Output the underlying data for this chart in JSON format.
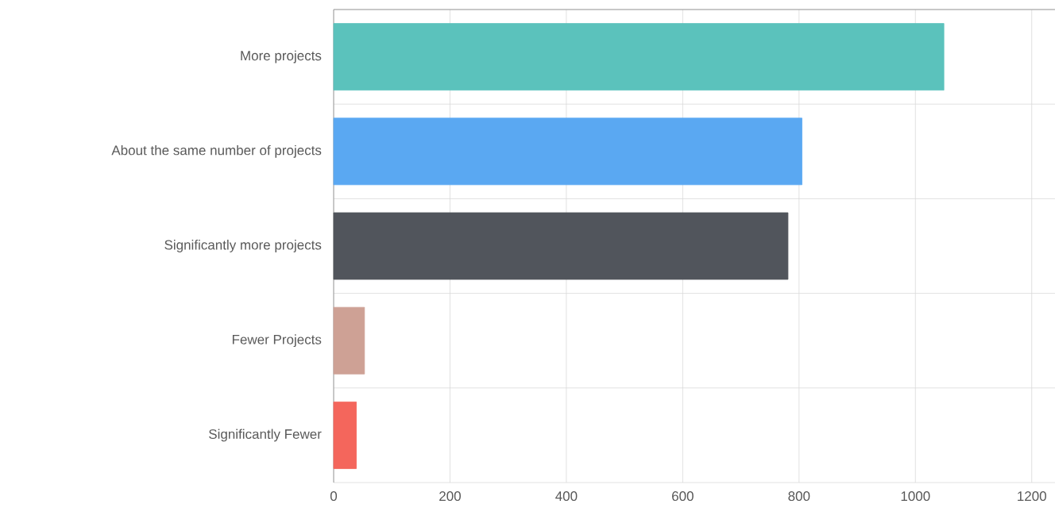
{
  "chart_data": {
    "type": "bar",
    "orientation": "horizontal",
    "categories": [
      "More projects",
      "About the same number of projects",
      "Significantly more projects",
      "Fewer Projects",
      "Significantly Fewer"
    ],
    "values": [
      1049,
      805,
      781,
      53,
      39
    ],
    "colors": [
      "#5bc2bc",
      "#5aa8f2",
      "#51555c",
      "#cea195",
      "#f4665c"
    ],
    "xlim": [
      0,
      1240
    ],
    "xticks": [
      0,
      200,
      400,
      600,
      800,
      1000,
      1200
    ],
    "grid": true
  }
}
